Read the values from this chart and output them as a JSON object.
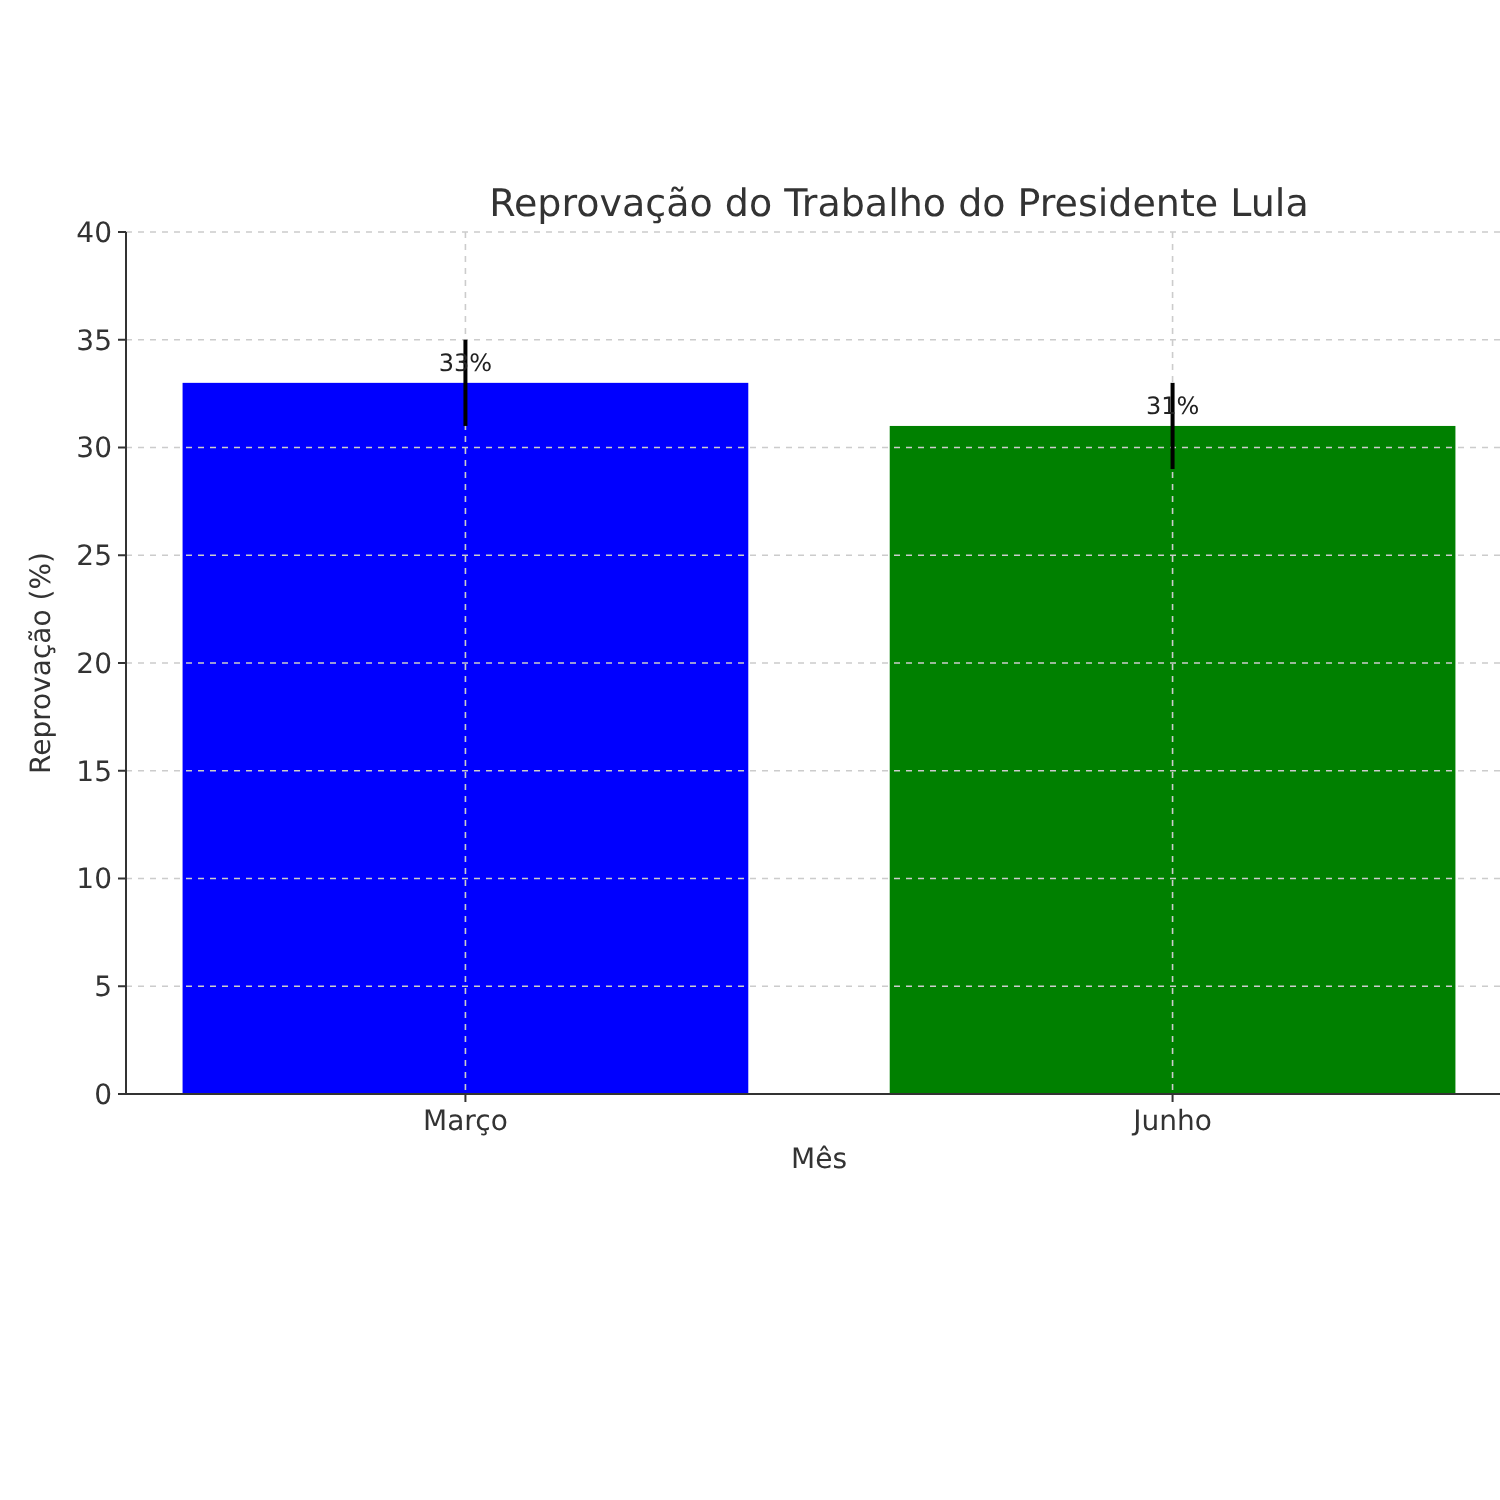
{
  "chart_data": {
    "type": "bar",
    "title": "Reprovação do Trabalho do Presidente Lula",
    "xlabel": "Mês",
    "ylabel": "Reprovação (%)",
    "categories": [
      "Março",
      "Junho"
    ],
    "colors": [
      "#0000ff",
      "#008000"
    ],
    "values": [
      33,
      31
    ],
    "errors": [
      2,
      2
    ],
    "value_labels": [
      "33%",
      "31%"
    ],
    "ylim": [
      0,
      40
    ],
    "yticks": [
      0,
      5,
      10,
      15,
      20,
      25,
      30,
      35,
      40
    ],
    "grid": true
  }
}
